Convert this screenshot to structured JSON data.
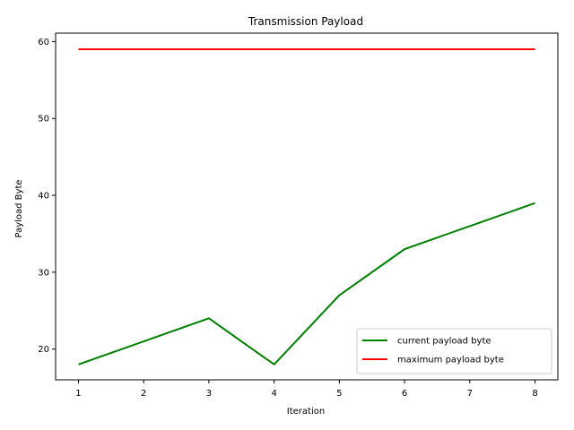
{
  "chart_data": {
    "type": "line",
    "title": "Transmission Payload",
    "xlabel": "Iteration",
    "ylabel": "Payload Byte",
    "x": [
      1,
      2,
      3,
      4,
      5,
      6,
      7,
      8
    ],
    "xlim": [
      0.65,
      8.35
    ],
    "ylim": [
      16,
      61.1
    ],
    "xticks": [
      1,
      2,
      3,
      4,
      5,
      6,
      7,
      8
    ],
    "yticks": [
      20,
      30,
      40,
      50,
      60
    ],
    "grid": false,
    "legend_position": "lower right",
    "series": [
      {
        "name": "current payload byte",
        "color": "#008000",
        "values": [
          18,
          21,
          24,
          18,
          27,
          33,
          36,
          39
        ]
      },
      {
        "name": "maximum payload byte",
        "color": "#ff0000",
        "values": [
          59,
          59,
          59,
          59,
          59,
          59,
          59,
          59
        ]
      }
    ]
  }
}
